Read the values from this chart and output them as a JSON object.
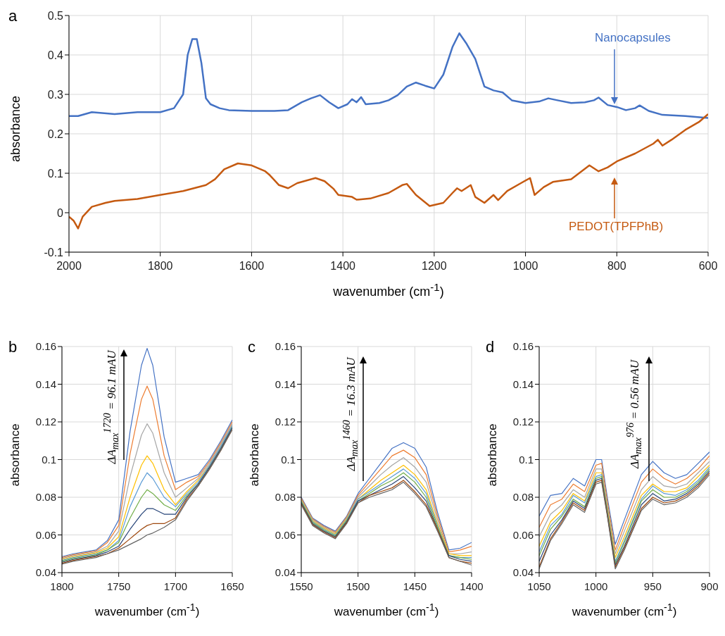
{
  "chart_data": [
    {
      "type": "line",
      "title": "a",
      "xlabel": "wavenumber (cm$^{-1}$)",
      "ylabel": "absorbance",
      "xlim": [
        2000,
        600
      ],
      "xticks": [
        2000,
        1800,
        1600,
        1400,
        1200,
        1000,
        800,
        600
      ],
      "ylim": [
        -0.1,
        0.5
      ],
      "yticks": [
        -0.1,
        0,
        0.1,
        0.2,
        0.3,
        0.4,
        0.5
      ],
      "grid": true,
      "marker": "none",
      "series": [
        {
          "name": "Nanocapsules",
          "color": "#4472c4",
          "x": [
            2000,
            1980,
            1950,
            1900,
            1850,
            1800,
            1770,
            1750,
            1740,
            1730,
            1720,
            1710,
            1700,
            1690,
            1670,
            1650,
            1600,
            1550,
            1520,
            1490,
            1470,
            1450,
            1430,
            1410,
            1390,
            1380,
            1370,
            1360,
            1350,
            1320,
            1300,
            1280,
            1260,
            1240,
            1220,
            1200,
            1180,
            1160,
            1145,
            1130,
            1110,
            1090,
            1070,
            1050,
            1030,
            1000,
            970,
            950,
            930,
            900,
            870,
            850,
            840,
            820,
            800,
            780,
            760,
            750,
            730,
            700,
            650,
            600
          ],
          "values": [
            0.245,
            0.245,
            0.255,
            0.25,
            0.255,
            0.255,
            0.265,
            0.3,
            0.4,
            0.44,
            0.44,
            0.38,
            0.29,
            0.275,
            0.265,
            0.26,
            0.258,
            0.258,
            0.26,
            0.28,
            0.29,
            0.298,
            0.28,
            0.265,
            0.275,
            0.288,
            0.28,
            0.293,
            0.275,
            0.278,
            0.285,
            0.298,
            0.32,
            0.33,
            0.322,
            0.315,
            0.35,
            0.42,
            0.455,
            0.43,
            0.39,
            0.32,
            0.31,
            0.305,
            0.285,
            0.278,
            0.282,
            0.29,
            0.285,
            0.278,
            0.28,
            0.285,
            0.292,
            0.273,
            0.268,
            0.26,
            0.265,
            0.272,
            0.258,
            0.248,
            0.245,
            0.24
          ]
        },
        {
          "name": "PEDOT(TPFPhB)",
          "color": "#c55a11",
          "x": [
            2000,
            1990,
            1980,
            1970,
            1950,
            1920,
            1900,
            1850,
            1800,
            1750,
            1700,
            1680,
            1660,
            1630,
            1600,
            1570,
            1560,
            1540,
            1520,
            1500,
            1460,
            1440,
            1420,
            1410,
            1380,
            1370,
            1340,
            1300,
            1270,
            1260,
            1240,
            1210,
            1180,
            1160,
            1150,
            1140,
            1120,
            1110,
            1090,
            1070,
            1060,
            1040,
            1010,
            990,
            980,
            960,
            940,
            900,
            860,
            840,
            820,
            800,
            760,
            720,
            710,
            700,
            680,
            650,
            620,
            600
          ],
          "values": [
            -0.01,
            -0.02,
            -0.04,
            -0.01,
            0.015,
            0.025,
            0.03,
            0.035,
            0.045,
            0.055,
            0.07,
            0.085,
            0.11,
            0.125,
            0.12,
            0.105,
            0.095,
            0.07,
            0.062,
            0.075,
            0.088,
            0.08,
            0.06,
            0.045,
            0.04,
            0.033,
            0.036,
            0.05,
            0.07,
            0.073,
            0.045,
            0.017,
            0.025,
            0.05,
            0.062,
            0.055,
            0.07,
            0.04,
            0.025,
            0.045,
            0.032,
            0.055,
            0.075,
            0.088,
            0.045,
            0.065,
            0.078,
            0.085,
            0.12,
            0.105,
            0.115,
            0.13,
            0.15,
            0.175,
            0.185,
            0.17,
            0.185,
            0.21,
            0.23,
            0.25
          ]
        }
      ]
    },
    {
      "type": "line",
      "title": "b",
      "xlabel": "wavenumber (cm$^{-1}$)",
      "ylabel": "absorbance",
      "annotations": [
        "ΔA$_{max}$$^{1720}$ = 96.1 mAU"
      ],
      "xlim": [
        1800,
        1650
      ],
      "xticks": [
        1800,
        1750,
        1700,
        1650
      ],
      "ylim": [
        0.04,
        0.16
      ],
      "yticks": [
        0.04,
        0.06,
        0.08,
        0.1,
        0.12,
        0.14,
        0.16
      ],
      "grid": true,
      "marker": "none",
      "x": [
        1800,
        1790,
        1780,
        1770,
        1760,
        1750,
        1740,
        1730,
        1725,
        1720,
        1710,
        1700,
        1690,
        1680,
        1670,
        1660,
        1650
      ],
      "series": [
        {
          "color": "#4472c4",
          "values": [
            0.0485,
            0.05,
            0.051,
            0.052,
            0.057,
            0.068,
            0.115,
            0.15,
            0.159,
            0.15,
            0.112,
            0.088,
            0.09,
            0.092,
            0.1,
            0.11,
            0.121
          ]
        },
        {
          "color": "#ed7d31",
          "values": [
            0.048,
            0.0495,
            0.0505,
            0.0515,
            0.056,
            0.065,
            0.103,
            0.132,
            0.139,
            0.132,
            0.102,
            0.084,
            0.088,
            0.091,
            0.099,
            0.109,
            0.12
          ]
        },
        {
          "color": "#a5a5a5",
          "values": [
            0.0475,
            0.049,
            0.05,
            0.051,
            0.054,
            0.062,
            0.091,
            0.113,
            0.119,
            0.114,
            0.093,
            0.08,
            0.085,
            0.09,
            0.098,
            0.108,
            0.119
          ]
        },
        {
          "color": "#ffc000",
          "values": [
            0.047,
            0.0485,
            0.0495,
            0.0505,
            0.053,
            0.059,
            0.08,
            0.097,
            0.102,
            0.098,
            0.084,
            0.076,
            0.083,
            0.089,
            0.097,
            0.107,
            0.118
          ]
        },
        {
          "color": "#5b9bd5",
          "values": [
            0.0465,
            0.048,
            0.049,
            0.05,
            0.052,
            0.057,
            0.075,
            0.088,
            0.093,
            0.09,
            0.08,
            0.075,
            0.082,
            0.088,
            0.097,
            0.107,
            0.118
          ]
        },
        {
          "color": "#70ad47",
          "values": [
            0.046,
            0.0475,
            0.0485,
            0.0495,
            0.052,
            0.056,
            0.069,
            0.08,
            0.084,
            0.082,
            0.076,
            0.073,
            0.081,
            0.087,
            0.096,
            0.106,
            0.117
          ]
        },
        {
          "color": "#264478",
          "values": [
            0.0455,
            0.047,
            0.048,
            0.049,
            0.051,
            0.054,
            0.063,
            0.071,
            0.074,
            0.074,
            0.071,
            0.071,
            0.08,
            0.087,
            0.096,
            0.106,
            0.117
          ]
        },
        {
          "color": "#9e480e",
          "values": [
            0.045,
            0.0465,
            0.0475,
            0.0485,
            0.05,
            0.053,
            0.058,
            0.063,
            0.065,
            0.066,
            0.066,
            0.069,
            0.079,
            0.086,
            0.095,
            0.105,
            0.116
          ]
        },
        {
          "color": "#636363",
          "values": [
            0.0445,
            0.046,
            0.047,
            0.048,
            0.05,
            0.052,
            0.055,
            0.058,
            0.06,
            0.061,
            0.064,
            0.068,
            0.078,
            0.086,
            0.095,
            0.105,
            0.116
          ]
        }
      ]
    },
    {
      "type": "line",
      "title": "c",
      "xlabel": "wavenumber (cm$^{-1}$)",
      "ylabel": "absorbance",
      "annotations": [
        "ΔA$_{max}$$^{1460}$ = 16.3 mAU"
      ],
      "xlim": [
        1550,
        1400
      ],
      "xticks": [
        1550,
        1500,
        1450,
        1400
      ],
      "ylim": [
        0.04,
        0.16
      ],
      "yticks": [
        0.04,
        0.06,
        0.08,
        0.1,
        0.12,
        0.14,
        0.16
      ],
      "grid": true,
      "marker": "none",
      "x": [
        1550,
        1540,
        1530,
        1520,
        1510,
        1500,
        1490,
        1480,
        1470,
        1460,
        1450,
        1440,
        1430,
        1420,
        1410,
        1400
      ],
      "series": [
        {
          "color": "#4472c4",
          "values": [
            0.08,
            0.069,
            0.065,
            0.062,
            0.07,
            0.082,
            0.09,
            0.098,
            0.106,
            0.109,
            0.106,
            0.096,
            0.072,
            0.052,
            0.053,
            0.056
          ]
        },
        {
          "color": "#ed7d31",
          "values": [
            0.0795,
            0.0685,
            0.0645,
            0.0615,
            0.0695,
            0.081,
            0.088,
            0.095,
            0.102,
            0.105,
            0.101,
            0.092,
            0.07,
            0.051,
            0.052,
            0.054
          ]
        },
        {
          "color": "#a5a5a5",
          "values": [
            0.079,
            0.068,
            0.064,
            0.061,
            0.069,
            0.08,
            0.086,
            0.092,
            0.097,
            0.101,
            0.096,
            0.088,
            0.068,
            0.05,
            0.05,
            0.051
          ]
        },
        {
          "color": "#ffc000",
          "values": [
            0.0785,
            0.0675,
            0.0635,
            0.0605,
            0.0685,
            0.079,
            0.084,
            0.089,
            0.093,
            0.097,
            0.092,
            0.084,
            0.066,
            0.05,
            0.049,
            0.049
          ]
        },
        {
          "color": "#5b9bd5",
          "values": [
            0.078,
            0.067,
            0.063,
            0.06,
            0.068,
            0.079,
            0.083,
            0.087,
            0.091,
            0.095,
            0.09,
            0.082,
            0.065,
            0.049,
            0.048,
            0.048
          ]
        },
        {
          "color": "#70ad47",
          "values": [
            0.0775,
            0.0665,
            0.0625,
            0.0595,
            0.0675,
            0.078,
            0.082,
            0.086,
            0.089,
            0.093,
            0.088,
            0.08,
            0.064,
            0.049,
            0.048,
            0.047
          ]
        },
        {
          "color": "#264478",
          "values": [
            0.077,
            0.066,
            0.062,
            0.059,
            0.067,
            0.078,
            0.081,
            0.084,
            0.087,
            0.091,
            0.085,
            0.078,
            0.063,
            0.049,
            0.047,
            0.046
          ]
        },
        {
          "color": "#9e480e",
          "values": [
            0.0765,
            0.0655,
            0.0615,
            0.0585,
            0.0665,
            0.077,
            0.081,
            0.083,
            0.085,
            0.089,
            0.083,
            0.076,
            0.063,
            0.048,
            0.046,
            0.045
          ]
        },
        {
          "color": "#636363",
          "values": [
            0.076,
            0.065,
            0.061,
            0.058,
            0.066,
            0.077,
            0.08,
            0.082,
            0.084,
            0.088,
            0.082,
            0.075,
            0.062,
            0.048,
            0.046,
            0.044
          ]
        }
      ]
    },
    {
      "type": "line",
      "title": "d",
      "xlabel": "wavenumber (cm$^{-1}$)",
      "ylabel": "absorbance",
      "annotations": [
        "ΔA$_{max}$$^{976}$ = 0.56 mAU"
      ],
      "xlim": [
        1050,
        900
      ],
      "xticks": [
        1050,
        1000,
        950,
        900
      ],
      "ylim": [
        0.04,
        0.16
      ],
      "yticks": [
        0.04,
        0.06,
        0.08,
        0.1,
        0.12,
        0.14,
        0.16
      ],
      "grid": true,
      "marker": "none",
      "x": [
        1050,
        1040,
        1030,
        1020,
        1010,
        1000,
        995,
        990,
        983,
        975,
        960,
        950,
        940,
        930,
        920,
        910,
        900
      ],
      "series": [
        {
          "color": "#4472c4",
          "values": [
            0.07,
            0.081,
            0.082,
            0.09,
            0.086,
            0.1,
            0.1,
            0.08,
            0.055,
            0.068,
            0.092,
            0.099,
            0.093,
            0.09,
            0.092,
            0.098,
            0.104
          ]
        },
        {
          "color": "#ed7d31",
          "values": [
            0.064,
            0.076,
            0.079,
            0.087,
            0.083,
            0.097,
            0.098,
            0.078,
            0.052,
            0.065,
            0.088,
            0.095,
            0.09,
            0.087,
            0.09,
            0.095,
            0.102
          ]
        },
        {
          "color": "#a5a5a5",
          "values": [
            0.059,
            0.071,
            0.076,
            0.084,
            0.08,
            0.095,
            0.095,
            0.076,
            0.05,
            0.062,
            0.084,
            0.091,
            0.086,
            0.085,
            0.087,
            0.093,
            0.099
          ]
        },
        {
          "color": "#ffc000",
          "values": [
            0.054,
            0.067,
            0.073,
            0.082,
            0.078,
            0.093,
            0.093,
            0.074,
            0.048,
            0.059,
            0.081,
            0.087,
            0.083,
            0.083,
            0.085,
            0.091,
            0.097
          ]
        },
        {
          "color": "#5b9bd5",
          "values": [
            0.051,
            0.065,
            0.071,
            0.081,
            0.077,
            0.091,
            0.092,
            0.073,
            0.046,
            0.057,
            0.079,
            0.086,
            0.082,
            0.081,
            0.084,
            0.089,
            0.096
          ]
        },
        {
          "color": "#70ad47",
          "values": [
            0.049,
            0.063,
            0.07,
            0.079,
            0.075,
            0.09,
            0.091,
            0.072,
            0.045,
            0.056,
            0.078,
            0.084,
            0.08,
            0.08,
            0.083,
            0.088,
            0.095
          ]
        },
        {
          "color": "#264478",
          "values": [
            0.046,
            0.06,
            0.068,
            0.078,
            0.074,
            0.089,
            0.09,
            0.071,
            0.044,
            0.054,
            0.076,
            0.082,
            0.078,
            0.079,
            0.082,
            0.087,
            0.094
          ]
        },
        {
          "color": "#9e480e",
          "values": [
            0.043,
            0.058,
            0.067,
            0.077,
            0.073,
            0.088,
            0.089,
            0.071,
            0.043,
            0.053,
            0.074,
            0.08,
            0.077,
            0.078,
            0.081,
            0.086,
            0.093
          ]
        },
        {
          "color": "#636363",
          "values": [
            0.042,
            0.057,
            0.066,
            0.076,
            0.072,
            0.087,
            0.088,
            0.07,
            0.042,
            0.052,
            0.073,
            0.079,
            0.076,
            0.077,
            0.08,
            0.085,
            0.092
          ]
        }
      ]
    }
  ]
}
